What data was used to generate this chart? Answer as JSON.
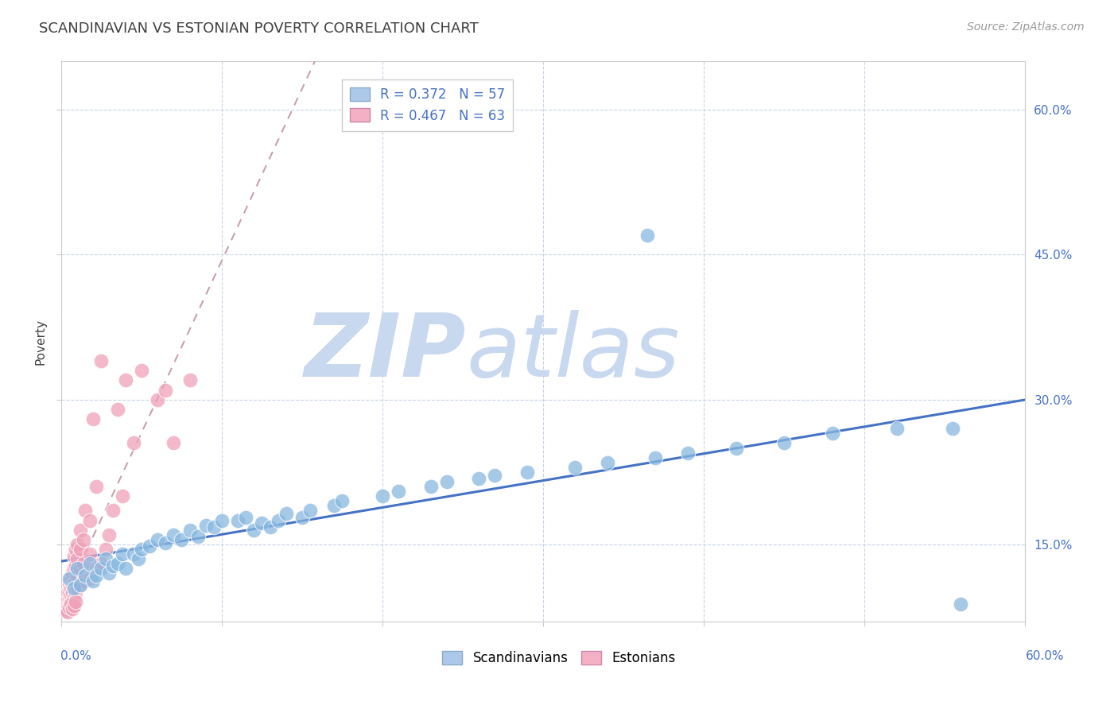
{
  "title": "SCANDINAVIAN VS ESTONIAN POVERTY CORRELATION CHART",
  "source_text": "Source: ZipAtlas.com",
  "ylabel": "Poverty",
  "xlim": [
    0.0,
    0.6
  ],
  "ylim": [
    0.07,
    0.65
  ],
  "y_ticks": [
    0.15,
    0.3,
    0.45,
    0.6
  ],
  "y_tick_labels": [
    "15.0%",
    "30.0%",
    "45.0%",
    "60.0%"
  ],
  "legend_entries": [
    {
      "label": "R = 0.372   N = 57",
      "color": "#adc8e8"
    },
    {
      "label": "R = 0.467   N = 63",
      "color": "#f4b0c4"
    }
  ],
  "legend_bottom": [
    "Scandinavians",
    "Estonians"
  ],
  "watermark_zip": "ZIP",
  "watermark_atlas": "atlas",
  "watermark_color": "#c8d8ee",
  "scandinavian_color": "#88b8e0",
  "scandinavian_edge": "#6898c8",
  "estonian_color": "#f0a0b8",
  "estonian_edge": "#d88098",
  "trend_scand_color": "#4472c4",
  "trend_est_color": "#cc6688",
  "background_color": "#ffffff",
  "grid_color": "#c8d4e4",
  "title_color": "#404040",
  "label_color": "#4472c4",
  "scand_points": [
    [
      0.005,
      0.115
    ],
    [
      0.008,
      0.105
    ],
    [
      0.01,
      0.125
    ],
    [
      0.012,
      0.108
    ],
    [
      0.015,
      0.118
    ],
    [
      0.018,
      0.13
    ],
    [
      0.02,
      0.112
    ],
    [
      0.022,
      0.118
    ],
    [
      0.025,
      0.125
    ],
    [
      0.028,
      0.135
    ],
    [
      0.03,
      0.12
    ],
    [
      0.032,
      0.128
    ],
    [
      0.035,
      0.13
    ],
    [
      0.038,
      0.14
    ],
    [
      0.04,
      0.125
    ],
    [
      0.045,
      0.14
    ],
    [
      0.048,
      0.135
    ],
    [
      0.05,
      0.145
    ],
    [
      0.055,
      0.148
    ],
    [
      0.06,
      0.155
    ],
    [
      0.065,
      0.152
    ],
    [
      0.07,
      0.16
    ],
    [
      0.075,
      0.155
    ],
    [
      0.08,
      0.165
    ],
    [
      0.085,
      0.158
    ],
    [
      0.09,
      0.17
    ],
    [
      0.095,
      0.168
    ],
    [
      0.1,
      0.175
    ],
    [
      0.11,
      0.175
    ],
    [
      0.115,
      0.178
    ],
    [
      0.12,
      0.165
    ],
    [
      0.125,
      0.172
    ],
    [
      0.13,
      0.168
    ],
    [
      0.135,
      0.175
    ],
    [
      0.14,
      0.182
    ],
    [
      0.15,
      0.178
    ],
    [
      0.155,
      0.185
    ],
    [
      0.17,
      0.19
    ],
    [
      0.175,
      0.195
    ],
    [
      0.2,
      0.2
    ],
    [
      0.21,
      0.205
    ],
    [
      0.23,
      0.21
    ],
    [
      0.24,
      0.215
    ],
    [
      0.26,
      0.218
    ],
    [
      0.27,
      0.222
    ],
    [
      0.29,
      0.225
    ],
    [
      0.32,
      0.23
    ],
    [
      0.34,
      0.235
    ],
    [
      0.37,
      0.24
    ],
    [
      0.39,
      0.245
    ],
    [
      0.42,
      0.25
    ],
    [
      0.45,
      0.255
    ],
    [
      0.48,
      0.265
    ],
    [
      0.52,
      0.27
    ],
    [
      0.555,
      0.27
    ],
    [
      0.56,
      0.088
    ],
    [
      0.365,
      0.47
    ]
  ],
  "est_points": [
    [
      0.002,
      0.085
    ],
    [
      0.003,
      0.09
    ],
    [
      0.004,
      0.095
    ],
    [
      0.004,
      0.1
    ],
    [
      0.005,
      0.088
    ],
    [
      0.005,
      0.095
    ],
    [
      0.005,
      0.1
    ],
    [
      0.005,
      0.11
    ],
    [
      0.006,
      0.092
    ],
    [
      0.006,
      0.098
    ],
    [
      0.006,
      0.105
    ],
    [
      0.006,
      0.115
    ],
    [
      0.007,
      0.09
    ],
    [
      0.007,
      0.1
    ],
    [
      0.007,
      0.108
    ],
    [
      0.007,
      0.12
    ],
    [
      0.008,
      0.095
    ],
    [
      0.008,
      0.11
    ],
    [
      0.008,
      0.125
    ],
    [
      0.008,
      0.138
    ],
    [
      0.009,
      0.1
    ],
    [
      0.009,
      0.112
    ],
    [
      0.009,
      0.128
    ],
    [
      0.009,
      0.145
    ],
    [
      0.01,
      0.105
    ],
    [
      0.01,
      0.118
    ],
    [
      0.01,
      0.135
    ],
    [
      0.01,
      0.15
    ],
    [
      0.012,
      0.108
    ],
    [
      0.012,
      0.125
    ],
    [
      0.012,
      0.145
    ],
    [
      0.012,
      0.165
    ],
    [
      0.014,
      0.112
    ],
    [
      0.014,
      0.13
    ],
    [
      0.014,
      0.155
    ],
    [
      0.015,
      0.185
    ],
    [
      0.018,
      0.115
    ],
    [
      0.018,
      0.14
    ],
    [
      0.018,
      0.175
    ],
    [
      0.02,
      0.28
    ],
    [
      0.022,
      0.125
    ],
    [
      0.022,
      0.21
    ],
    [
      0.025,
      0.13
    ],
    [
      0.025,
      0.34
    ],
    [
      0.028,
      0.145
    ],
    [
      0.03,
      0.16
    ],
    [
      0.032,
      0.185
    ],
    [
      0.035,
      0.29
    ],
    [
      0.038,
      0.2
    ],
    [
      0.04,
      0.32
    ],
    [
      0.045,
      0.255
    ],
    [
      0.05,
      0.33
    ],
    [
      0.06,
      0.3
    ],
    [
      0.065,
      0.31
    ],
    [
      0.07,
      0.255
    ],
    [
      0.08,
      0.32
    ],
    [
      0.003,
      0.082
    ],
    [
      0.004,
      0.08
    ],
    [
      0.005,
      0.085
    ],
    [
      0.006,
      0.088
    ],
    [
      0.007,
      0.083
    ],
    [
      0.008,
      0.087
    ],
    [
      0.009,
      0.091
    ]
  ]
}
